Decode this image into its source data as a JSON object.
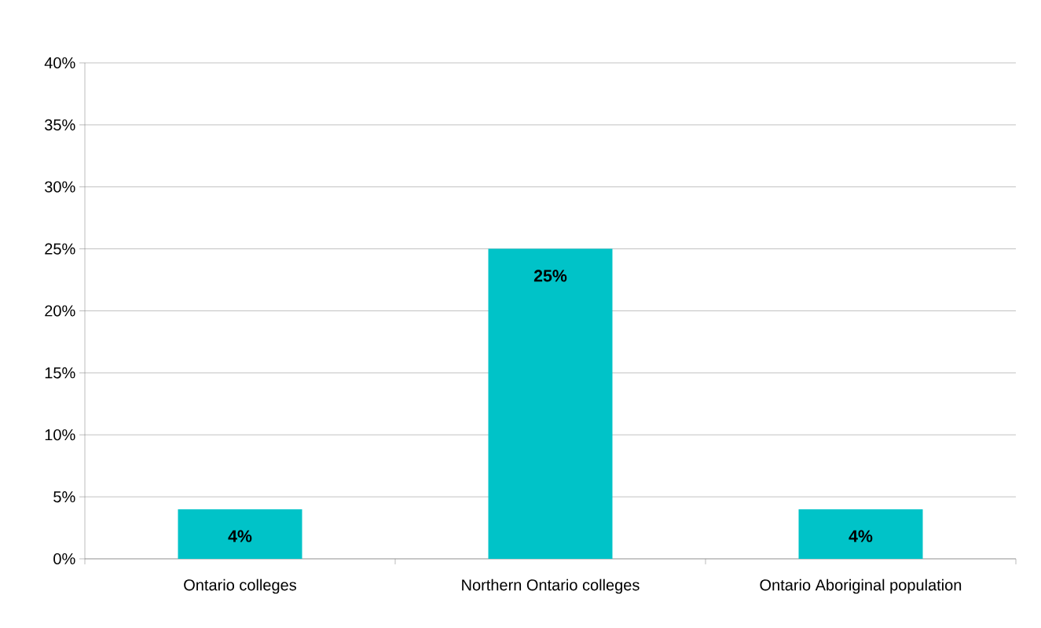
{
  "chart_data": {
    "type": "bar",
    "categories": [
      "Ontario colleges",
      "Northern Ontario colleges",
      "Ontario Aboriginal population"
    ],
    "values": [
      4,
      25,
      4
    ],
    "color": "#00c3c8",
    "value_labels": [
      "4%",
      "25%",
      "4%"
    ],
    "ylim": [
      0,
      40
    ],
    "yticks": [
      {
        "value": 0,
        "label": "0%"
      },
      {
        "value": 5,
        "label": "5%"
      },
      {
        "value": 10,
        "label": "10%"
      },
      {
        "value": 15,
        "label": "15%"
      },
      {
        "value": 20,
        "label": "20%"
      },
      {
        "value": 25,
        "label": "25%"
      },
      {
        "value": 30,
        "label": "30%"
      },
      {
        "value": 35,
        "label": "35%"
      },
      {
        "value": 40,
        "label": "40%"
      }
    ],
    "grid": "y"
  }
}
